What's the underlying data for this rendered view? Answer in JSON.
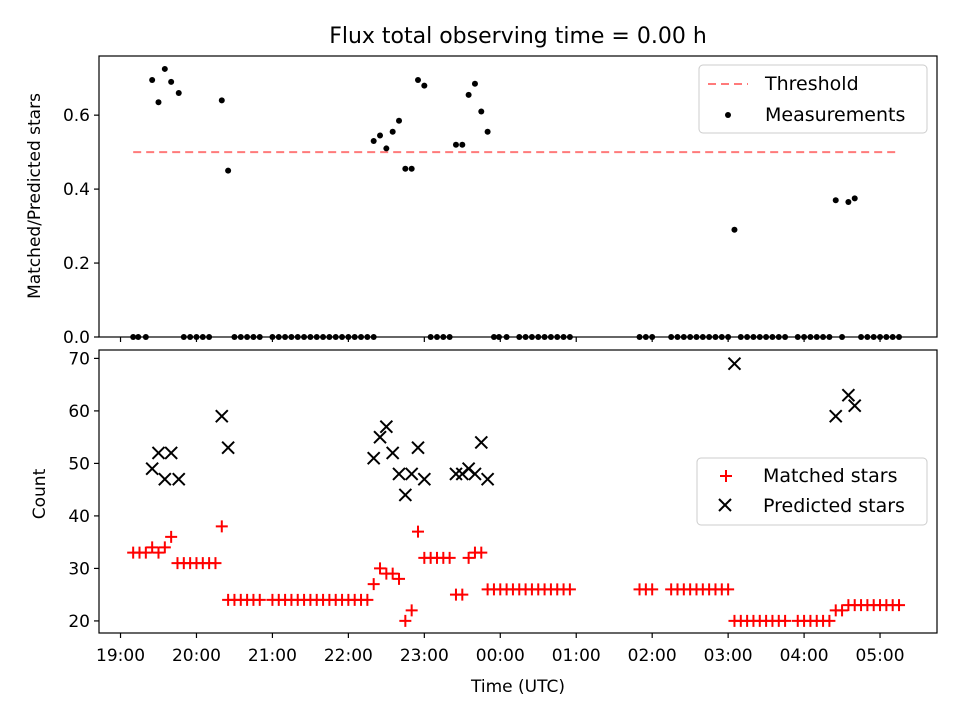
{
  "chart_data": [
    {
      "type": "scatter",
      "title": "Flux total observing time = 0.00 h",
      "xlabel": "",
      "ylabel": "Matched/Predicted stars",
      "xlim": [
        "18:43",
        "05:45"
      ],
      "ylim": [
        0,
        0.76
      ],
      "yticks": [
        0.0,
        0.2,
        0.4,
        0.6
      ],
      "ytick_labels": [
        "0.0",
        "0.2",
        "0.4",
        "0.6"
      ],
      "xticks": [
        "19:00",
        "20:00",
        "21:00",
        "22:00",
        "23:00",
        "00:00",
        "01:00",
        "02:00",
        "03:00",
        "04:00",
        "05:00"
      ],
      "legend": {
        "placement": "top-right",
        "entries": [
          "Threshold",
          "Measurements"
        ]
      },
      "threshold": {
        "name": "Threshold",
        "color": "#ff7a7a",
        "x_start": "19:10",
        "x_end": "05:12",
        "y": 0.5
      },
      "series": [
        {
          "name": "Measurements",
          "color": "#000000",
          "marker": "dot",
          "points": [
            [
              "19:10",
              0
            ],
            [
              "19:14",
              0
            ],
            [
              "19:20",
              0
            ],
            [
              "19:25",
              0.695
            ],
            [
              "19:30",
              0.635
            ],
            [
              "19:35",
              0.725
            ],
            [
              "19:40",
              0.69
            ],
            [
              "19:46",
              0.66
            ],
            [
              "19:50",
              0
            ],
            [
              "19:55",
              0
            ],
            [
              "20:00",
              0
            ],
            [
              "20:05",
              0
            ],
            [
              "20:10",
              0
            ],
            [
              "20:20",
              0.64
            ],
            [
              "20:25",
              0.45
            ],
            [
              "20:30",
              0
            ],
            [
              "20:35",
              0
            ],
            [
              "20:40",
              0
            ],
            [
              "20:45",
              0
            ],
            [
              "20:50",
              0
            ],
            [
              "21:00",
              0
            ],
            [
              "21:05",
              0
            ],
            [
              "21:10",
              0
            ],
            [
              "21:15",
              0
            ],
            [
              "21:20",
              0
            ],
            [
              "21:25",
              0
            ],
            [
              "21:30",
              0
            ],
            [
              "21:35",
              0
            ],
            [
              "21:40",
              0
            ],
            [
              "21:45",
              0
            ],
            [
              "21:50",
              0
            ],
            [
              "21:55",
              0
            ],
            [
              "22:00",
              0
            ],
            [
              "22:05",
              0
            ],
            [
              "22:10",
              0
            ],
            [
              "22:15",
              0
            ],
            [
              "22:20",
              0
            ],
            [
              "22:20",
              0.53
            ],
            [
              "22:25",
              0.545
            ],
            [
              "22:30",
              0.51
            ],
            [
              "22:35",
              0.555
            ],
            [
              "22:40",
              0.585
            ],
            [
              "22:45",
              0.455
            ],
            [
              "22:50",
              0.455
            ],
            [
              "22:55",
              0.695
            ],
            [
              "23:00",
              0.68
            ],
            [
              "23:05",
              0
            ],
            [
              "23:10",
              0
            ],
            [
              "23:15",
              0
            ],
            [
              "23:20",
              0
            ],
            [
              "23:25",
              0.52
            ],
            [
              "23:30",
              0.52
            ],
            [
              "23:35",
              0.655
            ],
            [
              "23:40",
              0.685
            ],
            [
              "23:45",
              0.61
            ],
            [
              "23:50",
              0.555
            ],
            [
              "23:55",
              0
            ],
            [
              "23:59",
              0
            ],
            [
              "00:05",
              0
            ],
            [
              "00:15",
              0
            ],
            [
              "00:20",
              0
            ],
            [
              "00:25",
              0
            ],
            [
              "00:30",
              0
            ],
            [
              "00:35",
              0
            ],
            [
              "00:40",
              0
            ],
            [
              "00:45",
              0
            ],
            [
              "00:50",
              0
            ],
            [
              "00:55",
              0
            ],
            [
              "01:50",
              0
            ],
            [
              "01:55",
              0
            ],
            [
              "02:00",
              0
            ],
            [
              "02:15",
              0
            ],
            [
              "02:20",
              0
            ],
            [
              "02:25",
              0
            ],
            [
              "02:30",
              0
            ],
            [
              "02:35",
              0
            ],
            [
              "02:40",
              0
            ],
            [
              "02:45",
              0
            ],
            [
              "02:50",
              0
            ],
            [
              "02:55",
              0
            ],
            [
              "03:00",
              0
            ],
            [
              "03:05",
              0.29
            ],
            [
              "03:10",
              0
            ],
            [
              "03:15",
              0
            ],
            [
              "03:20",
              0
            ],
            [
              "03:25",
              0
            ],
            [
              "03:30",
              0
            ],
            [
              "03:35",
              0
            ],
            [
              "03:40",
              0
            ],
            [
              "03:45",
              0
            ],
            [
              "03:55",
              0
            ],
            [
              "04:00",
              0
            ],
            [
              "04:05",
              0
            ],
            [
              "04:10",
              0
            ],
            [
              "04:15",
              0
            ],
            [
              "04:20",
              0
            ],
            [
              "04:25",
              0.37
            ],
            [
              "04:30",
              0
            ],
            [
              "04:35",
              0.365
            ],
            [
              "04:40",
              0.375
            ],
            [
              "04:45",
              0
            ],
            [
              "04:50",
              0
            ],
            [
              "04:55",
              0
            ],
            [
              "05:00",
              0
            ],
            [
              "05:05",
              0
            ],
            [
              "05:10",
              0
            ],
            [
              "05:15",
              0
            ]
          ]
        }
      ]
    },
    {
      "type": "scatter",
      "title": "",
      "xlabel": "Time (UTC)",
      "ylabel": "Count",
      "xlim": [
        "18:43",
        "05:45"
      ],
      "ylim": [
        17.7,
        71.6
      ],
      "yticks": [
        20,
        30,
        40,
        50,
        60,
        70
      ],
      "ytick_labels": [
        "20",
        "30",
        "40",
        "50",
        "60",
        "70"
      ],
      "xticks": [
        "19:00",
        "20:00",
        "21:00",
        "22:00",
        "23:00",
        "00:00",
        "01:00",
        "02:00",
        "03:00",
        "04:00",
        "05:00"
      ],
      "legend": {
        "placement": "center-right",
        "entries": [
          "Matched stars",
          "Predicted stars"
        ]
      },
      "series": [
        {
          "name": "Matched stars",
          "color": "#ff0000",
          "marker": "plus",
          "points": [
            [
              "19:10",
              33
            ],
            [
              "19:15",
              33
            ],
            [
              "19:20",
              33
            ],
            [
              "19:25",
              34
            ],
            [
              "19:30",
              33
            ],
            [
              "19:35",
              34
            ],
            [
              "19:40",
              36
            ],
            [
              "19:45",
              31
            ],
            [
              "19:50",
              31
            ],
            [
              "19:55",
              31
            ],
            [
              "20:00",
              31
            ],
            [
              "20:05",
              31
            ],
            [
              "20:10",
              31
            ],
            [
              "20:15",
              31
            ],
            [
              "20:20",
              38
            ],
            [
              "20:25",
              24
            ],
            [
              "20:30",
              24
            ],
            [
              "20:35",
              24
            ],
            [
              "20:40",
              24
            ],
            [
              "20:45",
              24
            ],
            [
              "20:50",
              24
            ],
            [
              "21:00",
              24
            ],
            [
              "21:05",
              24
            ],
            [
              "21:10",
              24
            ],
            [
              "21:15",
              24
            ],
            [
              "21:20",
              24
            ],
            [
              "21:25",
              24
            ],
            [
              "21:30",
              24
            ],
            [
              "21:35",
              24
            ],
            [
              "21:40",
              24
            ],
            [
              "21:45",
              24
            ],
            [
              "21:50",
              24
            ],
            [
              "21:55",
              24
            ],
            [
              "22:00",
              24
            ],
            [
              "22:05",
              24
            ],
            [
              "22:10",
              24
            ],
            [
              "22:15",
              24
            ],
            [
              "22:20",
              27
            ],
            [
              "22:25",
              30
            ],
            [
              "22:30",
              29
            ],
            [
              "22:35",
              29
            ],
            [
              "22:40",
              28
            ],
            [
              "22:45",
              20
            ],
            [
              "22:50",
              22
            ],
            [
              "22:55",
              37
            ],
            [
              "23:00",
              32
            ],
            [
              "23:05",
              32
            ],
            [
              "23:10",
              32
            ],
            [
              "23:15",
              32
            ],
            [
              "23:20",
              32
            ],
            [
              "23:25",
              25
            ],
            [
              "23:30",
              25
            ],
            [
              "23:35",
              32
            ],
            [
              "23:40",
              33
            ],
            [
              "23:45",
              33
            ],
            [
              "23:50",
              26
            ],
            [
              "23:55",
              26
            ],
            [
              "00:00",
              26
            ],
            [
              "00:05",
              26
            ],
            [
              "00:10",
              26
            ],
            [
              "00:15",
              26
            ],
            [
              "00:20",
              26
            ],
            [
              "00:25",
              26
            ],
            [
              "00:30",
              26
            ],
            [
              "00:35",
              26
            ],
            [
              "00:40",
              26
            ],
            [
              "00:45",
              26
            ],
            [
              "00:50",
              26
            ],
            [
              "00:55",
              26
            ],
            [
              "01:50",
              26
            ],
            [
              "01:55",
              26
            ],
            [
              "02:00",
              26
            ],
            [
              "02:15",
              26
            ],
            [
              "02:20",
              26
            ],
            [
              "02:25",
              26
            ],
            [
              "02:30",
              26
            ],
            [
              "02:35",
              26
            ],
            [
              "02:40",
              26
            ],
            [
              "02:45",
              26
            ],
            [
              "02:50",
              26
            ],
            [
              "02:55",
              26
            ],
            [
              "03:00",
              26
            ],
            [
              "03:05",
              20
            ],
            [
              "03:10",
              20
            ],
            [
              "03:15",
              20
            ],
            [
              "03:20",
              20
            ],
            [
              "03:25",
              20
            ],
            [
              "03:30",
              20
            ],
            [
              "03:35",
              20
            ],
            [
              "03:40",
              20
            ],
            [
              "03:45",
              20
            ],
            [
              "03:55",
              20
            ],
            [
              "04:00",
              20
            ],
            [
              "04:05",
              20
            ],
            [
              "04:10",
              20
            ],
            [
              "04:15",
              20
            ],
            [
              "04:20",
              20
            ],
            [
              "04:25",
              22
            ],
            [
              "04:30",
              22
            ],
            [
              "04:35",
              23
            ],
            [
              "04:40",
              23
            ],
            [
              "04:45",
              23
            ],
            [
              "04:50",
              23
            ],
            [
              "04:55",
              23
            ],
            [
              "05:00",
              23
            ],
            [
              "05:05",
              23
            ],
            [
              "05:10",
              23
            ],
            [
              "05:15",
              23
            ]
          ]
        },
        {
          "name": "Predicted stars",
          "color": "#000000",
          "marker": "x",
          "points": [
            [
              "19:25",
              49
            ],
            [
              "19:30",
              52
            ],
            [
              "19:35",
              47
            ],
            [
              "19:40",
              52
            ],
            [
              "19:46",
              47
            ],
            [
              "20:20",
              59
            ],
            [
              "20:25",
              53
            ],
            [
              "22:20",
              51
            ],
            [
              "22:25",
              55
            ],
            [
              "22:30",
              57
            ],
            [
              "22:35",
              52
            ],
            [
              "22:40",
              48
            ],
            [
              "22:45",
              44
            ],
            [
              "22:50",
              48
            ],
            [
              "22:55",
              53
            ],
            [
              "23:00",
              47
            ],
            [
              "23:25",
              48
            ],
            [
              "23:30",
              48
            ],
            [
              "23:35",
              49
            ],
            [
              "23:40",
              48
            ],
            [
              "23:45",
              54
            ],
            [
              "23:50",
              47
            ],
            [
              "03:05",
              69
            ],
            [
              "04:25",
              59
            ],
            [
              "04:35",
              63
            ],
            [
              "04:40",
              61
            ]
          ]
        }
      ]
    }
  ]
}
